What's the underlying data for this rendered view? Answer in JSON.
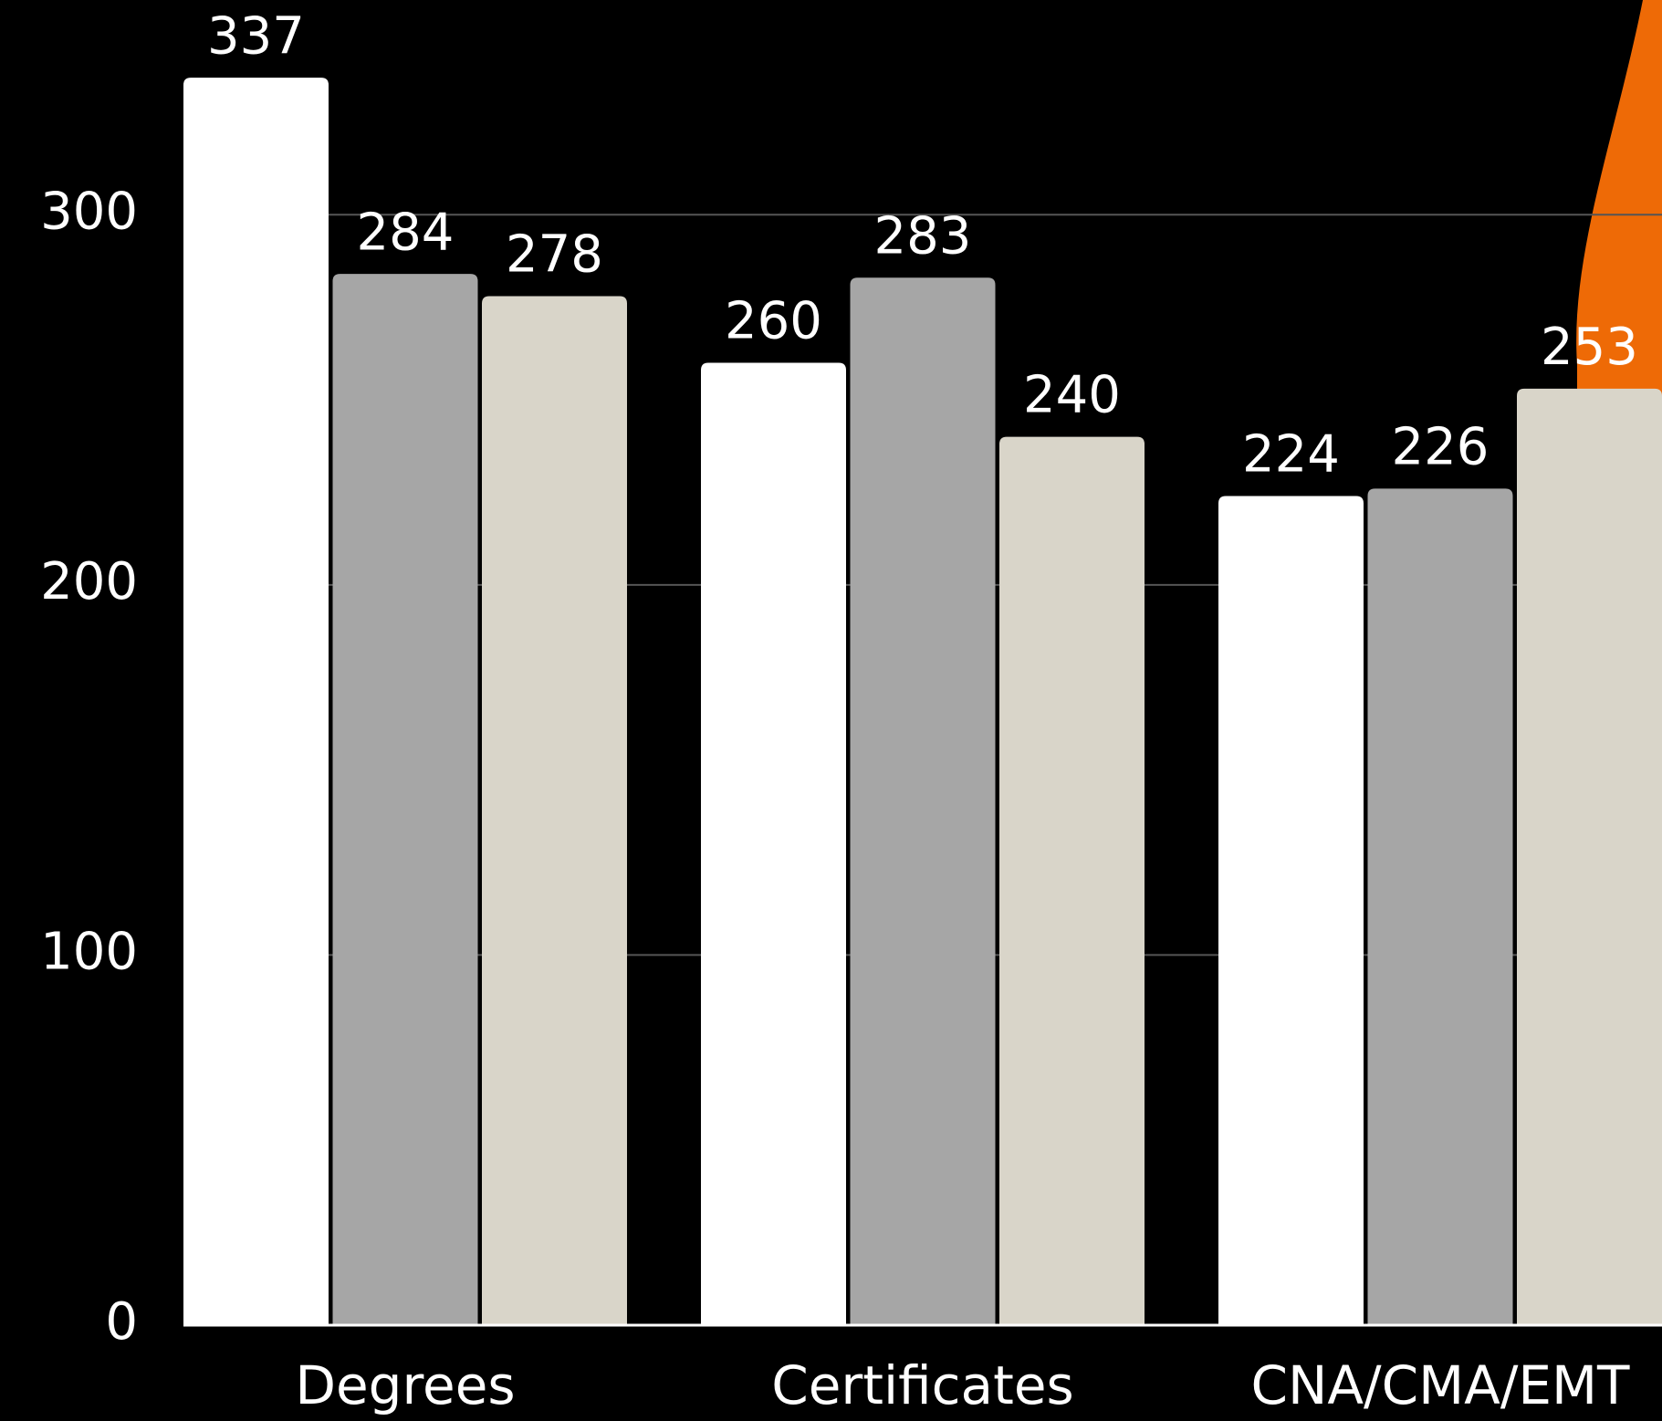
{
  "chart_data": {
    "type": "bar",
    "categories": [
      "Degrees",
      "Certificates",
      "CNA/CMA/EMT"
    ],
    "series": [
      {
        "color": "#ffffff",
        "values": [
          337,
          260,
          224
        ]
      },
      {
        "color": "#a6a6a6",
        "values": [
          284,
          283,
          226
        ]
      },
      {
        "color": "#d9d5c9",
        "values": [
          278,
          240,
          253
        ]
      }
    ],
    "ylim": [
      0,
      358
    ],
    "yticks": [
      0,
      100,
      200,
      300
    ],
    "grid": true
  }
}
